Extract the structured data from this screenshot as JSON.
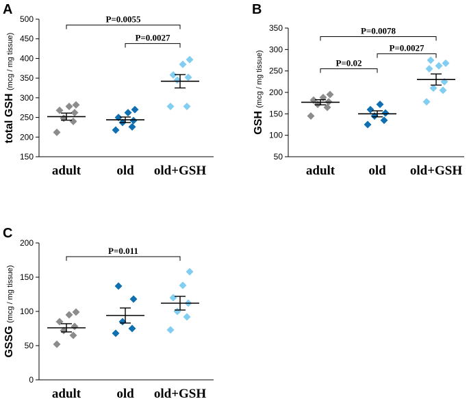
{
  "colors": {
    "adult": "#8c8c8c",
    "old": "#0f6fb0",
    "old_gsh": "#82cdf2"
  },
  "chart_data": [
    {
      "panel": "A",
      "type": "scatter",
      "categories": [
        "adult",
        "old",
        "old+GSH"
      ],
      "ylabel": "total GSH",
      "ylabel_unit": "(mcg / mg tissue)",
      "ylim": [
        150,
        500
      ],
      "yticks": [
        150,
        200,
        250,
        300,
        350,
        400,
        450,
        500
      ],
      "series": [
        {
          "name": "adult",
          "points": [
            212,
            240,
            248,
            262,
            268,
            278,
            282
          ],
          "mean": 252,
          "sem": 9
        },
        {
          "name": "old",
          "points": [
            218,
            226,
            237,
            242,
            250,
            262,
            270
          ],
          "mean": 244,
          "sem": 7
        },
        {
          "name": "old+GSH",
          "points": [
            278,
            278,
            345,
            352,
            358,
            385,
            397
          ],
          "mean": 342,
          "sem": 17
        }
      ],
      "comparisons": [
        {
          "from": "adult",
          "to": "old+GSH",
          "label": "P=0.0055",
          "y": 485
        },
        {
          "from": "old",
          "to": "old+GSH",
          "label": "P=0.0027",
          "y": 438
        }
      ]
    },
    {
      "panel": "B",
      "type": "scatter",
      "categories": [
        "adult",
        "old",
        "old+GSH"
      ],
      "ylabel": "GSH",
      "ylabel_unit": "(mcg / mg tissue)",
      "ylim": [
        50,
        350
      ],
      "yticks": [
        50,
        100,
        150,
        200,
        250,
        300,
        350
      ],
      "series": [
        {
          "name": "adult",
          "points": [
            145,
            165,
            172,
            178,
            182,
            188,
            195
          ],
          "mean": 177,
          "sem": 6
        },
        {
          "name": "old",
          "points": [
            125,
            135,
            145,
            152,
            160,
            172
          ],
          "mean": 150,
          "sem": 7
        },
        {
          "name": "old+GSH",
          "points": [
            178,
            205,
            210,
            225,
            255,
            262,
            268,
            275
          ],
          "mean": 230,
          "sem": 13
        }
      ],
      "comparisons": [
        {
          "from": "adult",
          "to": "old+GSH",
          "label": "P=0.0078",
          "y": 330
        },
        {
          "from": "adult",
          "to": "old",
          "label": "P=0.02",
          "y": 255
        },
        {
          "from": "old",
          "to": "old+GSH",
          "label": "P=0.0027",
          "y": 290
        }
      ]
    },
    {
      "panel": "C",
      "type": "scatter",
      "categories": [
        "adult",
        "old",
        "old+GSH"
      ],
      "ylabel": "GSSG",
      "ylabel_unit": "(mcg / mg tissue)",
      "ylim": [
        0,
        200
      ],
      "yticks": [
        0,
        50,
        100,
        150,
        200
      ],
      "series": [
        {
          "name": "adult",
          "points": [
            52,
            65,
            72,
            78,
            85,
            95,
            99
          ],
          "mean": 76,
          "sem": 6
        },
        {
          "name": "old",
          "points": [
            68,
            75,
            85,
            118,
            137
          ],
          "mean": 94,
          "sem": 11
        },
        {
          "name": "old+GSH",
          "points": [
            73,
            92,
            100,
            112,
            120,
            138,
            158
          ],
          "mean": 112,
          "sem": 10
        }
      ],
      "comparisons": [
        {
          "from": "adult",
          "to": "old+GSH",
          "label": "P=0.011",
          "y": 180
        }
      ]
    }
  ]
}
